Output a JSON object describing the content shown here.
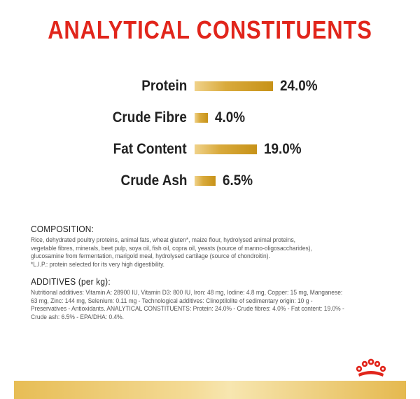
{
  "title": "ANALYTICAL CONSTITUENTS",
  "chart_data": {
    "type": "bar",
    "categories": [
      "Protein",
      "Crude Fibre",
      "Fat Content",
      "Crude Ash"
    ],
    "values": [
      24.0,
      4.0,
      19.0,
      6.5
    ],
    "value_labels": [
      "24.0%",
      "4.0%",
      "19.0%",
      "6.5%"
    ],
    "title": "ANALYTICAL CONSTITUENTS",
    "xlabel": "",
    "ylabel": ""
  },
  "composition": {
    "heading": "COMPOSITION:",
    "lines": [
      "Rice, dehydrated poultry proteins, animal fats, wheat gluten*, maize flour, hydrolysed animal proteins,",
      "vegetable fibres, minerals, beet pulp, soya oil, fish oil, copra oil, yeasts (source of manno-oligosaccharides),",
      "glucosamine from fermentation, marigold meal, hydrolysed cartilage (source of chondroitin).",
      "*L.I.P.: protein selected for its very high digestibility."
    ]
  },
  "additives": {
    "heading": "ADDITIVES (per kg):",
    "lines": [
      "Nutritional additives: Vitamin A: 28900 IU, Vitamin D3: 800 IU, Iron: 48 mg, Iodine: 4.8 mg, Copper: 15 mg, Manganese:",
      "63 mg, Zinc: 144 mg, Selenium: 0.11 mg - Technological additives: Clinoptilolite of sedimentary origin: 10 g -",
      "Preservatives - Antioxidants. ANALYTICAL CONSTITUENTS: Protein: 24.0% - Crude fibres: 4.0% - Fat content: 19.0% -",
      "Crude ash: 6.5% - EPA/DHA: 0.4%."
    ]
  },
  "logo": {
    "icon": "royal-canin-crown-icon",
    "color": "#e1251b"
  },
  "colors": {
    "title": "#e1251b",
    "bar": "#d4a233",
    "text": "#222222"
  }
}
